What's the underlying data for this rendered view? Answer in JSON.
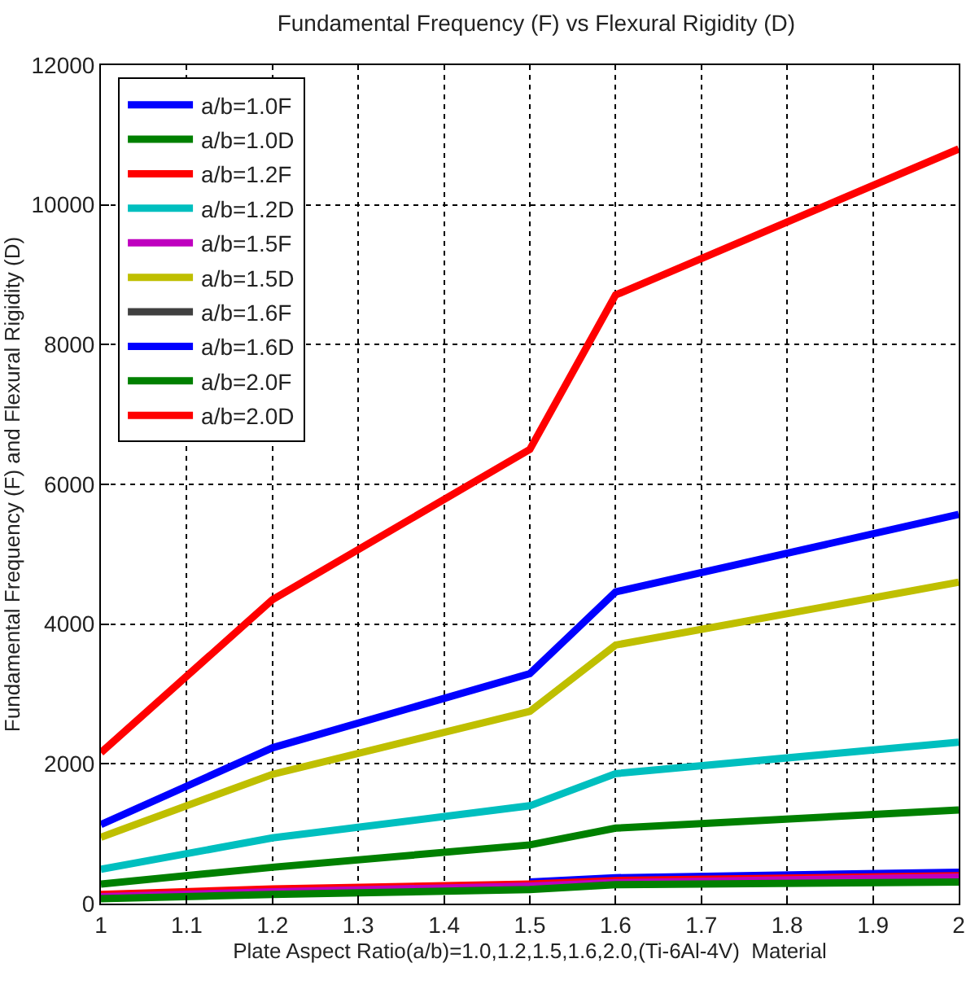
{
  "chart_data": {
    "type": "line",
    "title": "Fundamental Frequency (F) vs Flexural Rigidity (D)",
    "xlabel": "Plate Aspect Ratio(a/b)=1.0,1.2,1.5,1.6,2.0,(Ti-6Al-4V)  Material",
    "ylabel": "Fundamental Frequency (F) and Flexural Rigidity (D)",
    "x": [
      1,
      1.2,
      1.5,
      1.6,
      2
    ],
    "series": [
      {
        "name": "a/b=1.0F",
        "color": "#0000ff",
        "values": [
          null,
          null,
          310,
          370,
          450
        ]
      },
      {
        "name": "a/b=1.0D",
        "color": "#008000",
        "values": [
          280,
          520,
          840,
          1080,
          1340
        ]
      },
      {
        "name": "a/b=1.2F",
        "color": "#ff0000",
        "values": [
          130,
          210,
          280,
          330,
          400
        ]
      },
      {
        "name": "a/b=1.2D",
        "color": "#00bfbf",
        "values": [
          490,
          940,
          1400,
          1860,
          2310
        ]
      },
      {
        "name": "a/b=1.5F",
        "color": "#bf00bf",
        "values": [
          100,
          170,
          250,
          300,
          380
        ]
      },
      {
        "name": "a/b=1.5D",
        "color": "#bfbf00",
        "values": [
          950,
          1850,
          2750,
          3700,
          4600
        ]
      },
      {
        "name": "a/b=1.6F",
        "color": "#404040",
        "values": [
          null,
          null,
          null,
          null,
          null
        ]
      },
      {
        "name": "a/b=1.6D",
        "color": "#0000ff",
        "values": [
          1130,
          2230,
          3290,
          4460,
          5570
        ]
      },
      {
        "name": "a/b=2.0F",
        "color": "#008000",
        "values": [
          70,
          130,
          200,
          270,
          310
        ]
      },
      {
        "name": "a/b=2.0D",
        "color": "#ff0000",
        "values": [
          2160,
          4350,
          6500,
          8710,
          10800
        ]
      }
    ],
    "xlim": [
      1,
      2
    ],
    "xticks": [
      1,
      1.1,
      1.2,
      1.3,
      1.4,
      1.5,
      1.6,
      1.7,
      1.8,
      1.9,
      2
    ],
    "ylim": [
      0,
      12000
    ],
    "yticks": [
      0,
      2000,
      4000,
      6000,
      8000,
      10000,
      12000
    ],
    "grid": true,
    "legend": "top left",
    "line_style": "solid",
    "marker": "none"
  }
}
